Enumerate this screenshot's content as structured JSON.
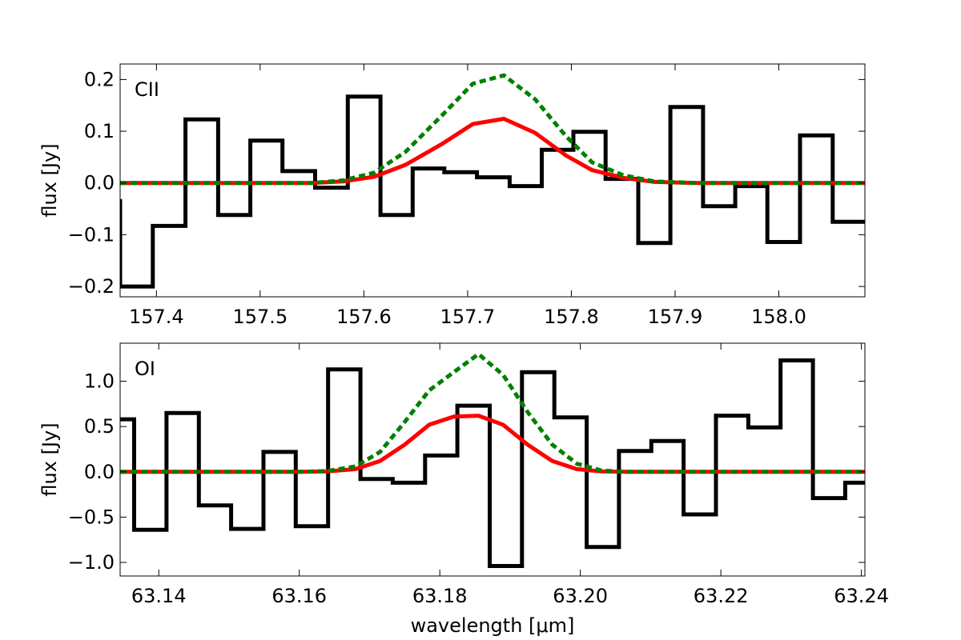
{
  "chart_data": [
    {
      "type": "line",
      "panel_label": "CII",
      "ylabel": "flux [Jy]",
      "xlabel": "",
      "xlim": [
        157.365,
        158.083
      ],
      "ylim": [
        -0.22,
        0.23
      ],
      "xticks": [
        "157.4",
        "157.5",
        "157.6",
        "157.7",
        "157.8",
        "157.9",
        "158.0"
      ],
      "xtick_values": [
        157.4,
        157.5,
        157.6,
        157.7,
        157.8,
        157.9,
        158.0
      ],
      "yticks": [
        "−0.2",
        "−0.1",
        "0.0",
        "0.1",
        "0.2"
      ],
      "ytick_values": [
        -0.2,
        -0.1,
        0.0,
        0.1,
        0.2
      ],
      "series": [
        {
          "style": "steps-mid",
          "color": "#000000",
          "x": [
            157.349,
            157.381,
            157.412,
            157.444,
            157.475,
            157.506,
            157.537,
            157.569,
            157.6,
            157.632,
            157.662,
            157.693,
            157.725,
            157.756,
            157.787,
            157.817,
            157.849,
            157.88,
            157.911,
            157.943,
            157.973,
            158.005,
            158.036,
            158.068
          ],
          "y": [
            -0.035,
            -0.2,
            -0.083,
            0.123,
            -0.062,
            0.082,
            0.023,
            -0.009,
            0.167,
            -0.062,
            0.028,
            0.021,
            0.011,
            -0.006,
            0.064,
            0.099,
            0.008,
            -0.116,
            0.147,
            -0.045,
            -0.006,
            -0.114,
            0.092,
            -0.075
          ]
        },
        {
          "style": "solid",
          "color": "#ff0000",
          "x": [
            157.365,
            157.4,
            157.45,
            157.5,
            157.55,
            157.58,
            157.61,
            157.64,
            157.675,
            157.705,
            157.735,
            157.765,
            157.795,
            157.82,
            157.85,
            157.88,
            157.92,
            157.95,
            158.0,
            158.083
          ],
          "y": [
            0.0,
            0.0,
            0.0,
            0.0,
            0.0,
            0.003,
            0.012,
            0.035,
            0.075,
            0.114,
            0.124,
            0.097,
            0.053,
            0.025,
            0.01,
            0.002,
            0.0,
            0.0,
            0.0,
            0.0
          ]
        },
        {
          "style": "dashed",
          "color": "#008000",
          "x": [
            157.365,
            157.4,
            157.45,
            157.5,
            157.55,
            157.58,
            157.61,
            157.64,
            157.675,
            157.705,
            157.735,
            157.765,
            157.795,
            157.82,
            157.85,
            157.88,
            157.92,
            157.95,
            158.0,
            158.083
          ],
          "y": [
            0.0,
            0.0,
            0.0,
            0.0,
            0.0,
            0.005,
            0.02,
            0.06,
            0.13,
            0.192,
            0.208,
            0.162,
            0.09,
            0.04,
            0.015,
            0.003,
            0.0,
            0.0,
            0.0,
            0.0
          ]
        }
      ]
    },
    {
      "type": "line",
      "panel_label": "OI",
      "ylabel": "flux [Jy]",
      "xlabel": "wavelength [μm]",
      "xlim": [
        63.1345,
        63.2405
      ],
      "ylim": [
        -1.15,
        1.42
      ],
      "xticks": [
        "63.14",
        "63.16",
        "63.18",
        "63.20",
        "63.22",
        "63.24"
      ],
      "xtick_values": [
        63.14,
        63.16,
        63.18,
        63.2,
        63.22,
        63.24
      ],
      "yticks": [
        "−1.0",
        "−0.5",
        "0.0",
        "0.5",
        "1.0"
      ],
      "ytick_values": [
        -1.0,
        -0.5,
        0.0,
        0.5,
        1.0
      ],
      "series": [
        {
          "style": "steps-mid",
          "color": "#000000",
          "x": [
            63.1342,
            63.1388,
            63.1434,
            63.148,
            63.1526,
            63.1572,
            63.1618,
            63.1664,
            63.171,
            63.1756,
            63.1802,
            63.1848,
            63.1894,
            63.194,
            63.1986,
            63.2032,
            63.2078,
            63.2124,
            63.217,
            63.2216,
            63.2262,
            63.2308,
            63.2354,
            63.24
          ],
          "y": [
            0.58,
            -0.64,
            0.65,
            -0.37,
            -0.63,
            0.22,
            -0.6,
            1.13,
            -0.08,
            -0.12,
            0.18,
            0.73,
            -1.04,
            1.1,
            0.6,
            -0.83,
            0.23,
            0.34,
            -0.47,
            0.62,
            0.49,
            1.23,
            -0.29,
            -0.12
          ]
        },
        {
          "style": "solid",
          "color": "#ff0000",
          "x": [
            63.1345,
            63.14,
            63.15,
            63.16,
            63.164,
            63.168,
            63.1715,
            63.175,
            63.1785,
            63.182,
            63.1855,
            63.189,
            63.1925,
            63.196,
            63.1995,
            63.203,
            63.2065,
            63.21,
            63.22,
            63.2405
          ],
          "y": [
            0.0,
            0.0,
            0.0,
            0.0,
            0.005,
            0.03,
            0.12,
            0.3,
            0.52,
            0.61,
            0.62,
            0.52,
            0.3,
            0.12,
            0.03,
            0.005,
            0.0,
            0.0,
            0.0,
            0.0
          ]
        },
        {
          "style": "dashed",
          "color": "#008000",
          "x": [
            63.1345,
            63.14,
            63.15,
            63.16,
            63.164,
            63.168,
            63.1715,
            63.175,
            63.1785,
            63.182,
            63.1855,
            63.189,
            63.1925,
            63.196,
            63.1995,
            63.203,
            63.2065,
            63.21,
            63.22,
            63.2405
          ],
          "y": [
            0.0,
            0.0,
            0.0,
            0.0,
            0.01,
            0.06,
            0.22,
            0.55,
            0.9,
            1.1,
            1.3,
            1.07,
            0.66,
            0.3,
            0.09,
            0.015,
            0.0,
            0.0,
            0.0,
            0.0
          ]
        }
      ]
    }
  ]
}
